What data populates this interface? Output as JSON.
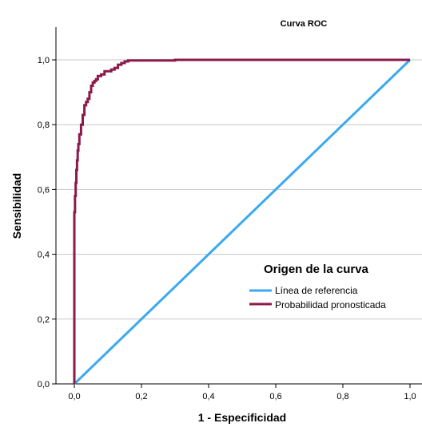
{
  "chart_data": {
    "type": "line",
    "title": "Curva ROC",
    "xlabel": "1 - Especificidad",
    "ylabel": "Sensibilidad",
    "xlim": [
      0,
      1
    ],
    "ylim": [
      0,
      1
    ],
    "xticks": [
      "0,0",
      "0,2",
      "0,4",
      "0,6",
      "0,8",
      "1,0"
    ],
    "yticks": [
      "0,0",
      "0,2",
      "0,4",
      "0,6",
      "0,8",
      "1,0"
    ],
    "grid": "horizontal",
    "legend": {
      "title": "Origen de la curva",
      "position": "right-center"
    },
    "series": [
      {
        "name": "Línea de referencia",
        "color": "#3aa9f0",
        "x": [
          0,
          1
        ],
        "y": [
          0,
          1
        ]
      },
      {
        "name": "Probabilidad pronosticada",
        "color": "#8b1a4a",
        "x": [
          0,
          0,
          0.002,
          0.004,
          0.006,
          0.008,
          0.01,
          0.012,
          0.015,
          0.02,
          0.025,
          0.03,
          0.035,
          0.04,
          0.045,
          0.05,
          0.055,
          0.06,
          0.065,
          0.07,
          0.08,
          0.09,
          0.1,
          0.11,
          0.12,
          0.13,
          0.14,
          0.15,
          0.16,
          0.2,
          0.25,
          0.29,
          0.3,
          0.4,
          0.5,
          0.6,
          0.7,
          0.8,
          0.9,
          1.0
        ],
        "y": [
          0,
          0.53,
          0.58,
          0.62,
          0.66,
          0.69,
          0.72,
          0.74,
          0.77,
          0.8,
          0.83,
          0.86,
          0.87,
          0.88,
          0.9,
          0.92,
          0.93,
          0.935,
          0.94,
          0.95,
          0.955,
          0.965,
          0.965,
          0.97,
          0.975,
          0.985,
          0.99,
          0.995,
          0.998,
          0.998,
          0.998,
          0.998,
          1.0,
          1.0,
          1.0,
          1.0,
          1.0,
          1.0,
          1.0,
          1.0
        ]
      }
    ]
  }
}
